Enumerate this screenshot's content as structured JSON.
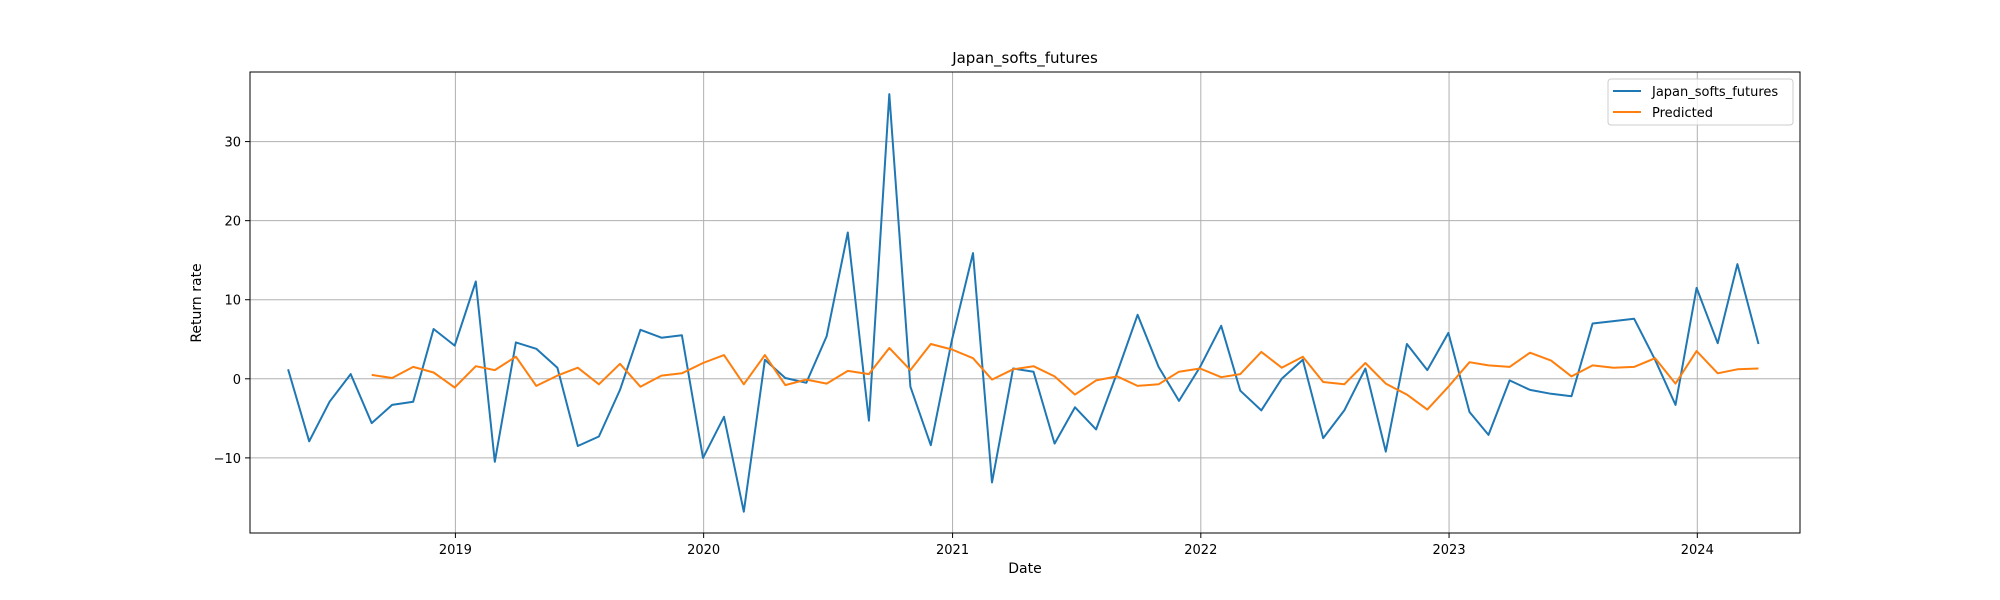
{
  "chart_data": {
    "type": "line",
    "title": "Japan_softs_futures",
    "xlabel": "Date",
    "ylabel": "Return rate",
    "x_tick_labels": [
      "2019",
      "2020",
      "2021",
      "2022",
      "2023",
      "2024"
    ],
    "y_tick_labels": [
      "−10",
      "0",
      "10",
      "20",
      "30"
    ],
    "y_ticks": [
      -10,
      0,
      10,
      20,
      30
    ],
    "xlim": [
      "2018-03-05",
      "2024-05-31"
    ],
    "ylim": [
      -19.5,
      38.8
    ],
    "grid": true,
    "legend_position": "top-right",
    "series": [
      {
        "name": "Japan_softs_futures",
        "color": "#1f77b4",
        "x": [
          "2018-04-30",
          "2018-05-31",
          "2018-06-30",
          "2018-07-31",
          "2018-08-31",
          "2018-09-30",
          "2018-10-31",
          "2018-11-30",
          "2018-12-31",
          "2019-01-31",
          "2019-02-28",
          "2019-03-31",
          "2019-04-30",
          "2019-05-31",
          "2019-06-30",
          "2019-07-31",
          "2019-08-31",
          "2019-09-30",
          "2019-10-31",
          "2019-11-30",
          "2019-12-31",
          "2020-01-31",
          "2020-02-29",
          "2020-03-31",
          "2020-04-30",
          "2020-05-31",
          "2020-06-30",
          "2020-07-31",
          "2020-08-31",
          "2020-09-30",
          "2020-10-31",
          "2020-11-30",
          "2020-12-31",
          "2021-01-31",
          "2021-02-28",
          "2021-03-31",
          "2021-04-30",
          "2021-05-31",
          "2021-06-30",
          "2021-07-31",
          "2021-08-31",
          "2021-09-30",
          "2021-10-31",
          "2021-11-30",
          "2021-12-31",
          "2022-01-31",
          "2022-02-28",
          "2022-03-31",
          "2022-04-30",
          "2022-05-31",
          "2022-06-30",
          "2022-07-31",
          "2022-08-31",
          "2022-09-30",
          "2022-10-31",
          "2022-11-30",
          "2022-12-31",
          "2023-01-31",
          "2023-02-28",
          "2023-03-31",
          "2023-04-30",
          "2023-05-31",
          "2023-06-30",
          "2023-07-31",
          "2023-08-31",
          "2023-09-30",
          "2023-10-31",
          "2023-11-30",
          "2023-12-31",
          "2024-01-31",
          "2024-02-29",
          "2024-03-31"
        ],
        "values": [
          1.2,
          -7.9,
          -2.9,
          0.6,
          -5.6,
          -3.3,
          -2.9,
          6.3,
          4.2,
          12.3,
          -10.5,
          4.6,
          3.8,
          1.4,
          -8.5,
          -7.3,
          -1.4,
          6.2,
          5.2,
          5.5,
          -10.0,
          -4.8,
          -16.8,
          2.4,
          0.1,
          -0.5,
          5.4,
          18.5,
          -5.3,
          36.0,
          -1.0,
          -8.4,
          4.9,
          15.9,
          -13.1,
          1.3,
          0.9,
          -8.2,
          -3.6,
          -6.4,
          0.8,
          8.1,
          1.5,
          -2.8,
          1.5,
          6.7,
          -1.5,
          -4.0,
          0.0,
          2.4,
          -7.5,
          -4.0,
          1.3,
          -9.2,
          4.4,
          1.1,
          5.8,
          -4.2,
          -7.1,
          -0.2,
          -1.4,
          -1.9,
          -2.2,
          7.0,
          7.3,
          7.6,
          2.4,
          -3.3,
          11.5,
          4.5,
          14.5,
          4.4
        ]
      },
      {
        "name": "Predicted",
        "color": "#ff7f0e",
        "x": [
          "2018-08-31",
          "2018-09-30",
          "2018-10-31",
          "2018-11-30",
          "2018-12-31",
          "2019-01-31",
          "2019-02-28",
          "2019-03-31",
          "2019-04-30",
          "2019-05-31",
          "2019-06-30",
          "2019-07-31",
          "2019-08-31",
          "2019-09-30",
          "2019-10-31",
          "2019-11-30",
          "2019-12-31",
          "2020-01-31",
          "2020-02-29",
          "2020-03-31",
          "2020-04-30",
          "2020-05-31",
          "2020-06-30",
          "2020-07-31",
          "2020-08-31",
          "2020-09-30",
          "2020-10-31",
          "2020-11-30",
          "2020-12-31",
          "2021-01-31",
          "2021-02-28",
          "2021-03-31",
          "2021-04-30",
          "2021-05-31",
          "2021-06-30",
          "2021-07-31",
          "2021-08-31",
          "2021-09-30",
          "2021-10-31",
          "2021-11-30",
          "2021-12-31",
          "2022-01-31",
          "2022-02-28",
          "2022-03-31",
          "2022-04-30",
          "2022-05-31",
          "2022-06-30",
          "2022-07-31",
          "2022-08-31",
          "2022-09-30",
          "2022-10-31",
          "2022-11-30",
          "2022-12-31",
          "2023-01-31",
          "2023-02-28",
          "2023-03-31",
          "2023-04-30",
          "2023-05-31",
          "2023-06-30",
          "2023-07-31",
          "2023-08-31",
          "2023-09-30",
          "2023-10-31",
          "2023-11-30",
          "2023-12-31",
          "2024-01-31",
          "2024-02-29",
          "2024-03-31"
        ],
        "values": [
          0.5,
          0.1,
          1.5,
          0.8,
          -1.1,
          1.6,
          1.1,
          2.8,
          -0.9,
          0.4,
          1.4,
          -0.7,
          1.9,
          -1.0,
          0.4,
          0.7,
          2.0,
          3.0,
          -0.7,
          3.0,
          -0.8,
          -0.1,
          -0.6,
          1.0,
          0.6,
          3.9,
          1.1,
          4.4,
          3.7,
          2.6,
          -0.1,
          1.2,
          1.6,
          0.3,
          -2.0,
          -0.2,
          0.3,
          -0.9,
          -0.7,
          0.9,
          1.3,
          0.2,
          0.6,
          3.4,
          1.4,
          2.8,
          -0.4,
          -0.7,
          2.0,
          -0.6,
          -2.0,
          -3.9,
          -1.0,
          2.1,
          1.7,
          1.5,
          3.3,
          2.3,
          0.3,
          1.7,
          1.4,
          1.5,
          2.6,
          -0.6,
          3.5,
          0.7,
          1.2,
          1.3
        ]
      }
    ]
  }
}
